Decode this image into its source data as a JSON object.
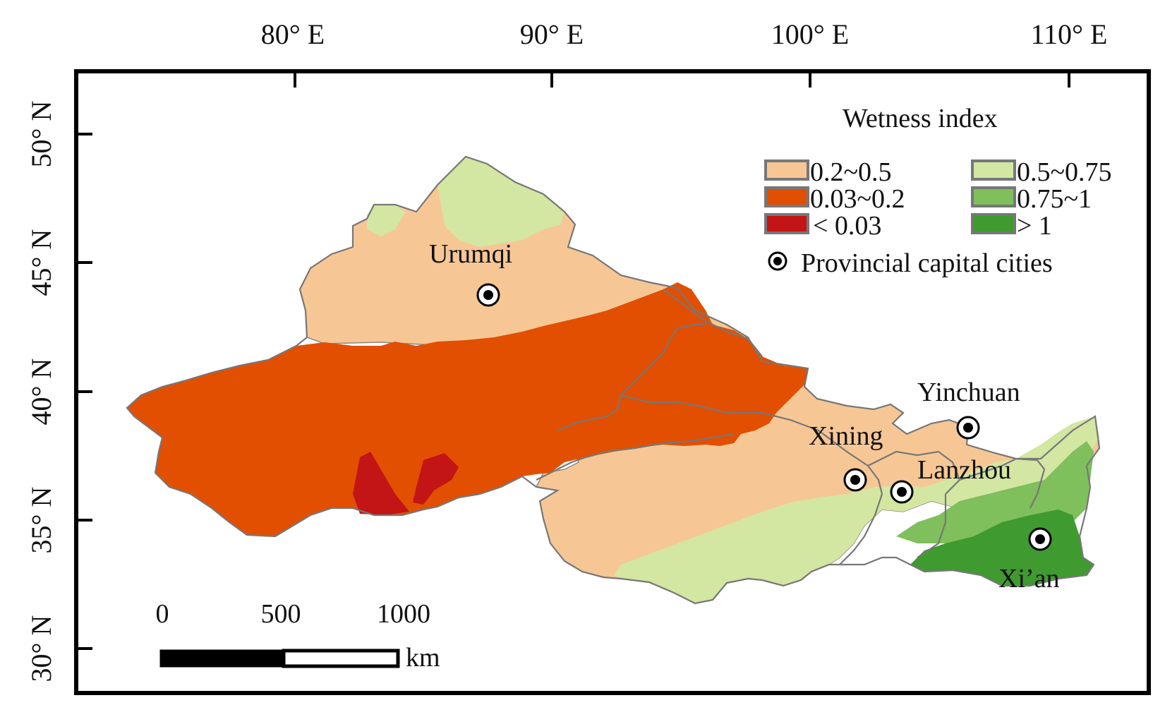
{
  "map": {
    "top_ticks": [
      "80° E",
      "90° E",
      "100° E",
      "110° E"
    ],
    "left_ticks": [
      "50° N",
      "45° N",
      "40° N",
      "35° N",
      "30° N"
    ]
  },
  "legend": {
    "title": "Wetness index",
    "items": [
      {
        "label": "0.2~0.5",
        "color": "#f6c795"
      },
      {
        "label": "0.5~0.75",
        "color": "#d3e6a2"
      },
      {
        "label": "0.03~0.2",
        "color": "#e24f00"
      },
      {
        "label": "0.75~1",
        "color": "#7fbf5c"
      },
      {
        "label": "< 0.03",
        "color": "#c31416"
      },
      {
        "label": "> 1",
        "color": "#3f9a2f"
      }
    ],
    "cities_label": "Provincial capital cities"
  },
  "cities": [
    {
      "name": "Urumqi"
    },
    {
      "name": "Yinchuan"
    },
    {
      "name": "Xining"
    },
    {
      "name": "Lanzhou"
    },
    {
      "name": "Xi’an"
    }
  ],
  "scale_bar": {
    "ticks": [
      "0",
      "500",
      "1000"
    ],
    "unit": "km"
  }
}
